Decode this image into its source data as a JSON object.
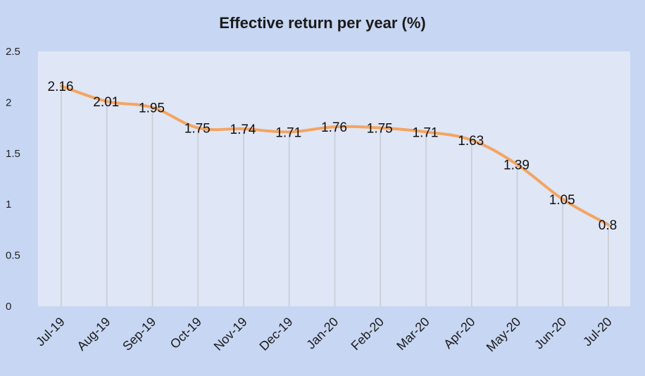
{
  "chart_data": {
    "type": "line",
    "title": "Effective return per year (%)",
    "xlabel": "",
    "ylabel": "",
    "categories": [
      "Jul-19",
      "Aug-19",
      "Sep-19",
      "Oct-19",
      "Nov-19",
      "Dec-19",
      "Jan-20",
      "Feb-20",
      "Mar-20",
      "Apr-20",
      "May-20",
      "Jun-20",
      "Jul-20"
    ],
    "series": [
      {
        "values": [
          2.16,
          2.01,
          1.95,
          1.75,
          1.74,
          1.71,
          1.76,
          1.75,
          1.71,
          1.63,
          1.39,
          1.05,
          0.8
        ],
        "data_labels": [
          "2.16",
          "2.01",
          "1.95",
          "1.75",
          "1.74",
          "1.71",
          "1.76",
          "1.75",
          "1.71",
          "1.63",
          "1.39",
          "1.05",
          "0.8"
        ]
      }
    ],
    "ylim": [
      0,
      2.5
    ],
    "yticks": [
      0,
      0.5,
      1,
      1.5,
      2,
      2.5
    ],
    "ytick_labels": [
      "0",
      "0.5",
      "1",
      "1.5",
      "2",
      "2.5"
    ],
    "grid": "vertical drop lines",
    "legend": "none",
    "colors": {
      "background": "#c7d6f2",
      "plot_area": "#dfe6f5",
      "line": "#f4a460",
      "drop_lines": "#c8ccd4"
    }
  }
}
